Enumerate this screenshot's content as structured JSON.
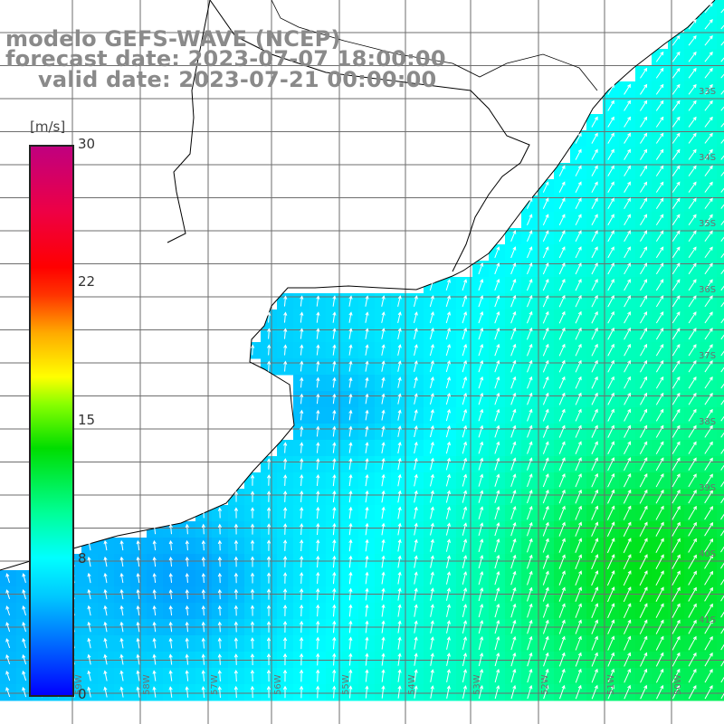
{
  "title": {
    "line1": "modelo GEFS-WAVE (NCEP)",
    "line2": "forecast date: 2023-07-07 18:00:00",
    "line3": "valid date: 2023-07-21 00:00:00"
  },
  "colorbar": {
    "unit": "[m/s]",
    "min": 0,
    "max": 30,
    "ticks": [
      "30",
      "22",
      "15",
      "8",
      "0"
    ],
    "colors": [
      "#0000ff",
      "#00c8ff",
      "#00ffff",
      "#00dd00",
      "#ffff00",
      "#ff0000",
      "#c0007f"
    ]
  },
  "map": {
    "lat_labels": [
      "33S",
      "34S",
      "35S",
      "36S",
      "37S",
      "38S",
      "39S",
      "40S",
      "41S"
    ],
    "lon_labels": [
      "59W",
      "58W",
      "57W",
      "56W",
      "55W",
      "54W",
      "53W",
      "52W",
      "51W",
      "50W"
    ],
    "land_color": "#ffffff",
    "grid_color": "#6e6e6e",
    "coast_color": "#000000",
    "arrow_color": "#ffffff"
  }
}
